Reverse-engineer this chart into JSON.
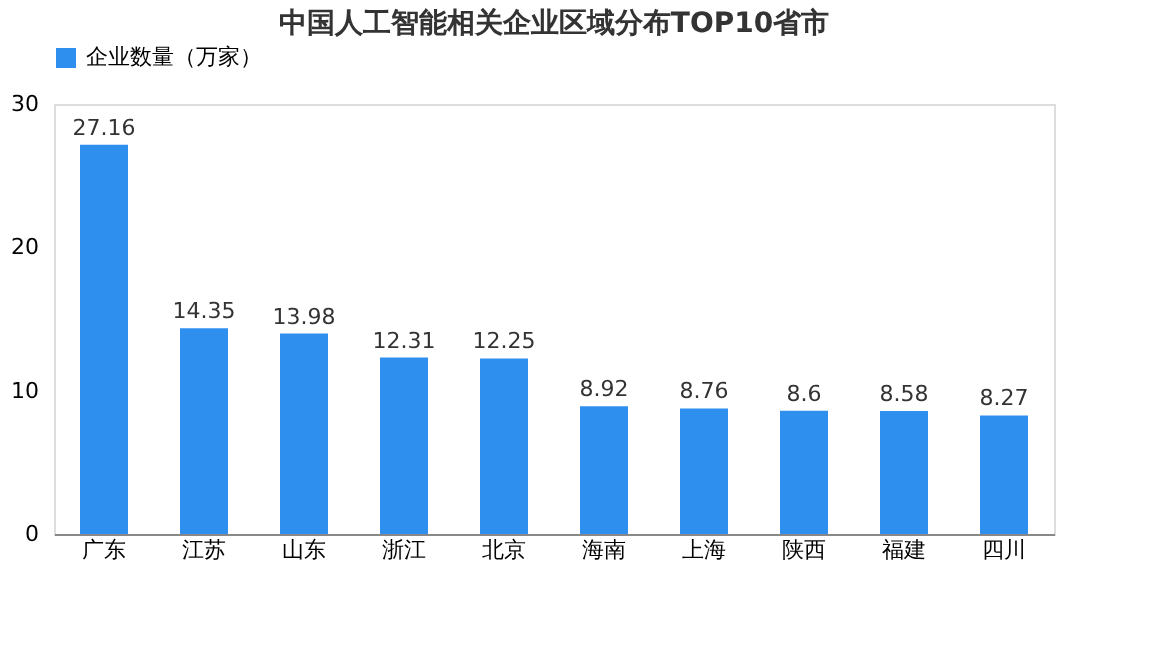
{
  "chart_data": {
    "type": "bar",
    "title": "中国人工智能相关企业区域分布TOP10省市",
    "categories": [
      "广东",
      "江苏",
      "山东",
      "浙江",
      "北京",
      "海南",
      "上海",
      "陕西",
      "福建",
      "四川"
    ],
    "series": [
      {
        "name": "企业数量（万家）",
        "color": "#2f8fef",
        "values": [
          27.16,
          14.35,
          13.98,
          12.31,
          12.25,
          8.92,
          8.76,
          8.6,
          8.58,
          8.27
        ]
      }
    ],
    "ylim": [
      0,
      30
    ],
    "yticks": [
      0,
      10,
      20,
      30
    ],
    "grid": false,
    "legend": "top",
    "data_labels": true
  }
}
